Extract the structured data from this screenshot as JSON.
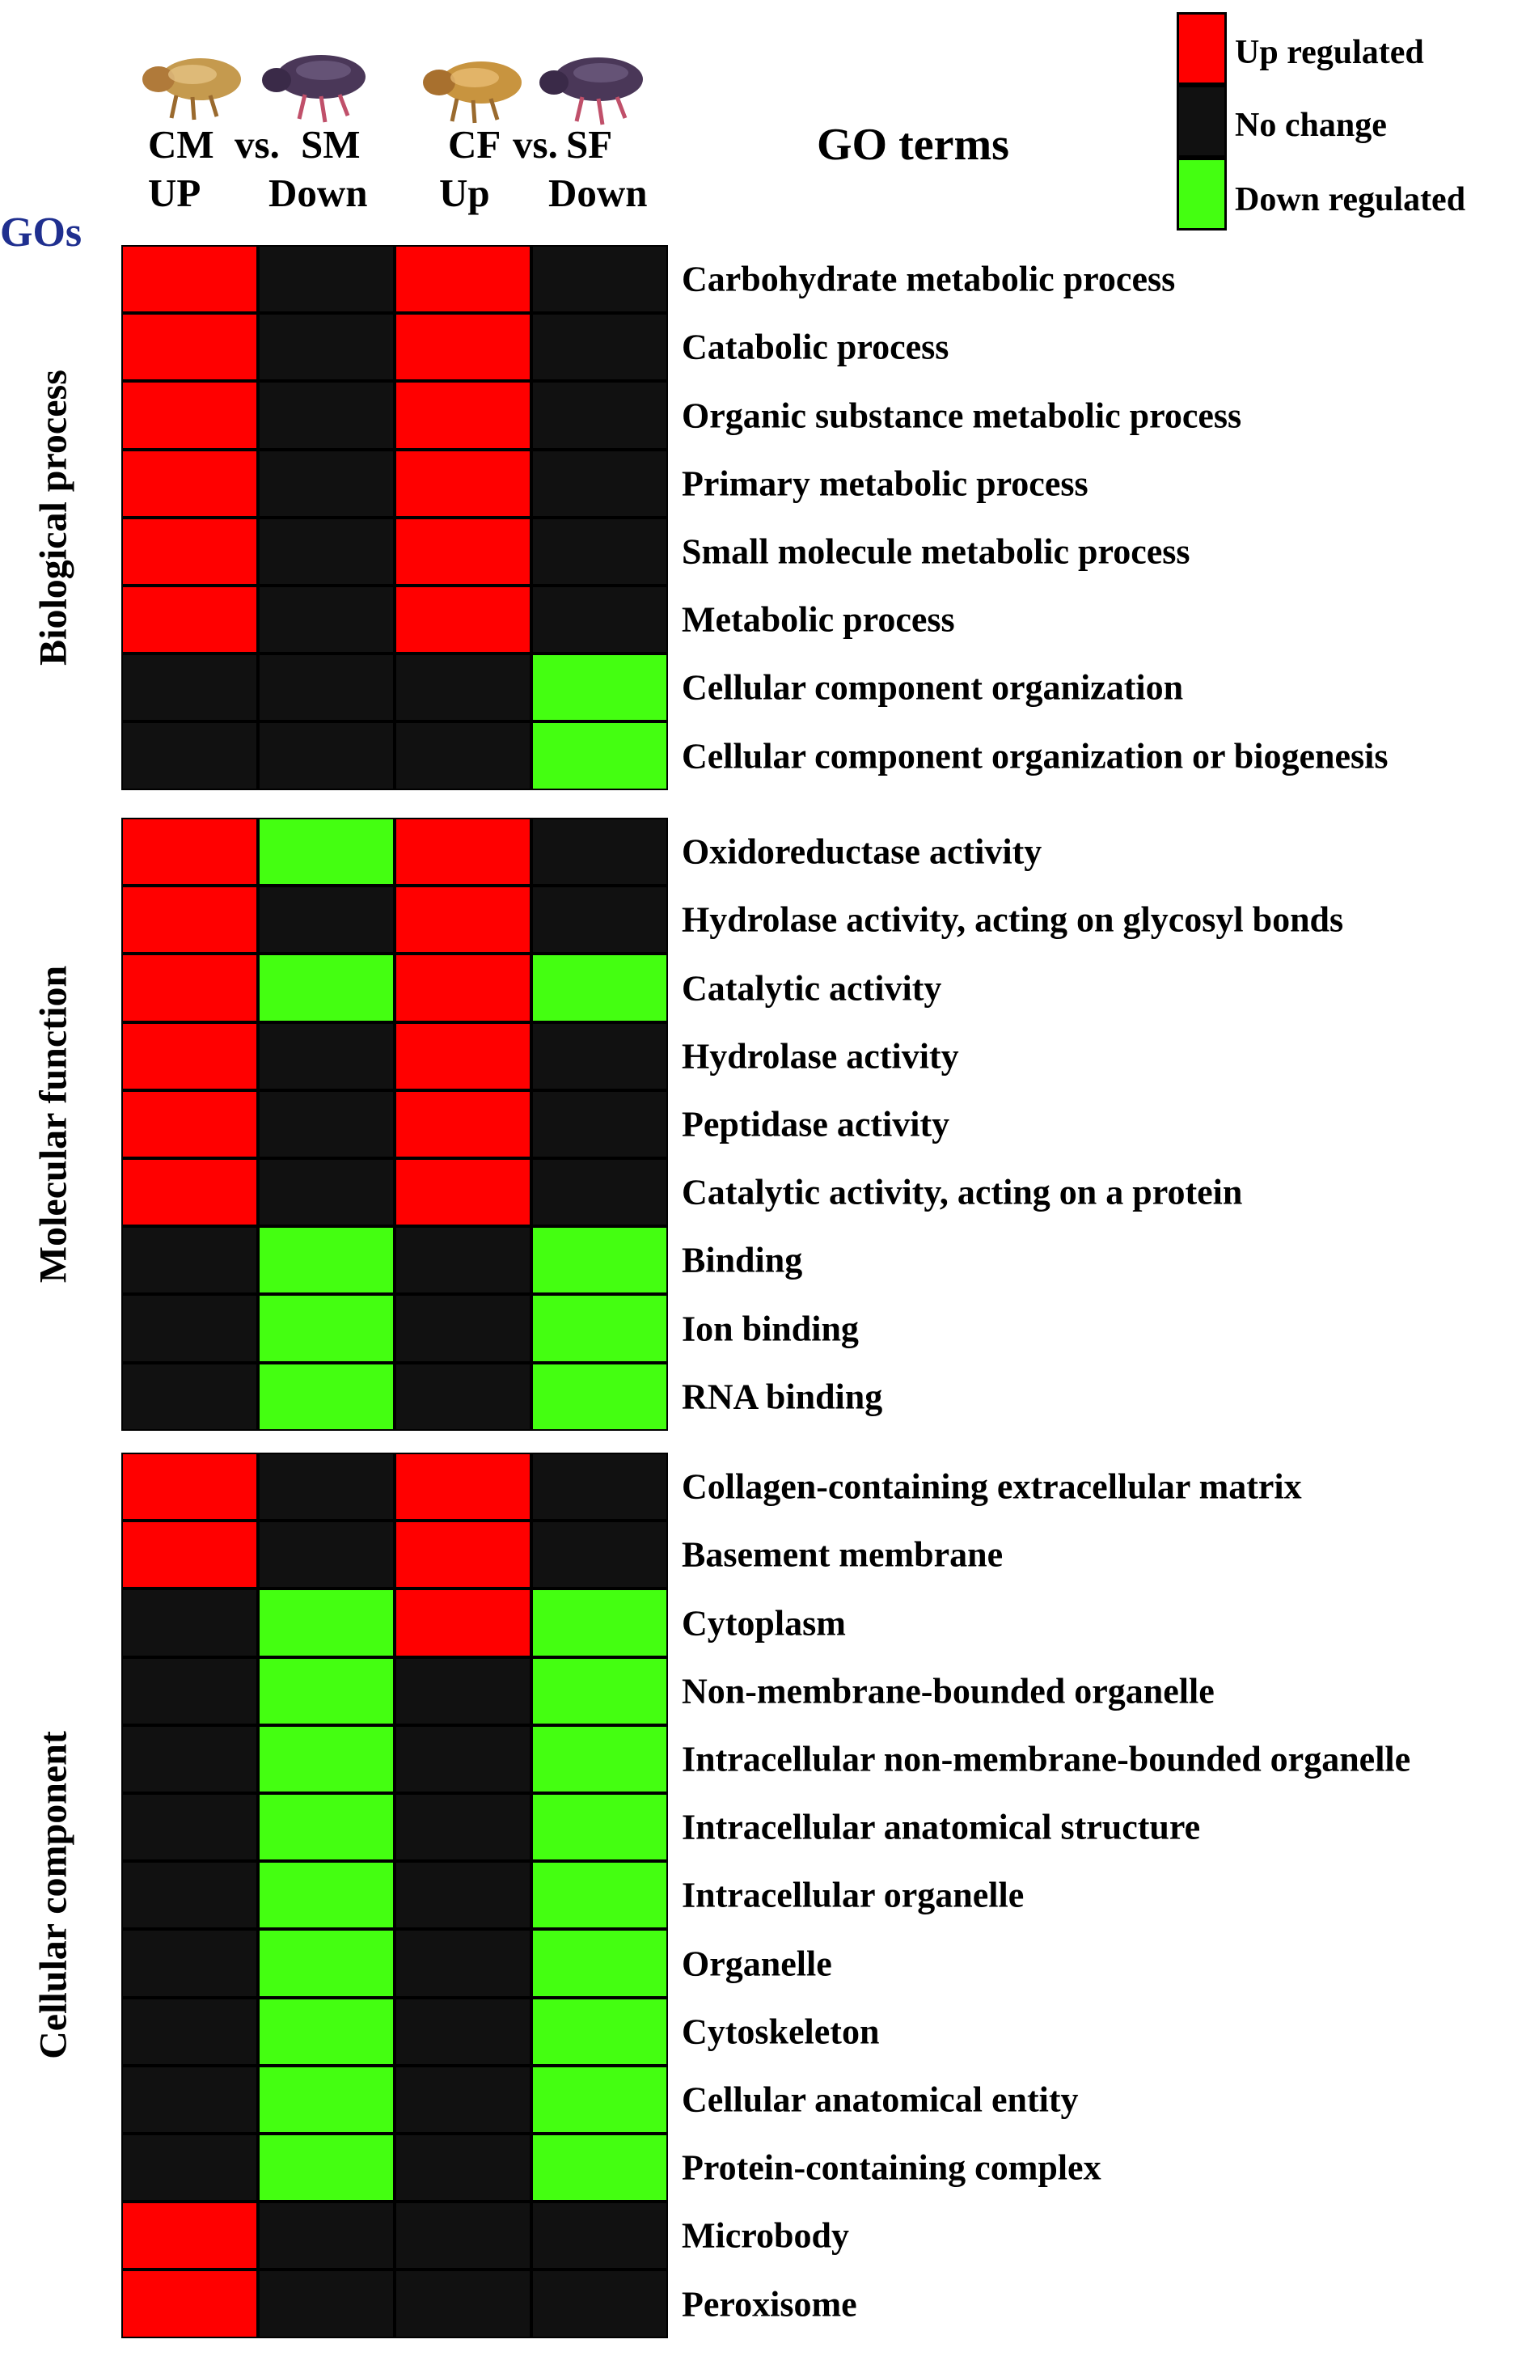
{
  "header": {
    "gos_label": "GOs",
    "go_terms_title": "GO terms",
    "comparisons": [
      {
        "left_label": "CM",
        "vs_label": "vs.",
        "right_label": "SM",
        "left_dir": "UP",
        "right_dir": "Down"
      },
      {
        "left_label": "CF",
        "vs_label": "vs.",
        "right_label": "SF",
        "left_dir": "Up",
        "right_dir": "Down"
      }
    ]
  },
  "legend": [
    {
      "label": "Up regulated",
      "color": "#ff0000"
    },
    {
      "label": "No change",
      "color": "#111111"
    },
    {
      "label": "Down regulated",
      "color": "#44ff11"
    }
  ],
  "chart_data": {
    "type": "heatmap",
    "columns": [
      "CM UP",
      "SM Down",
      "CF Up",
      "SF Down"
    ],
    "value_legend": {
      "up": "Up regulated",
      "none": "No change",
      "down": "Down regulated"
    },
    "colors": {
      "up": "#ff0000",
      "none": "#111111",
      "down": "#44ff11"
    },
    "groups": [
      {
        "name": "Biological process",
        "rows": [
          {
            "term": "Carbohydrate metabolic process",
            "values": [
              "up",
              "none",
              "up",
              "none"
            ]
          },
          {
            "term": "Catabolic process",
            "values": [
              "up",
              "none",
              "up",
              "none"
            ]
          },
          {
            "term": "Organic substance metabolic process",
            "values": [
              "up",
              "none",
              "up",
              "none"
            ]
          },
          {
            "term": "Primary metabolic process",
            "values": [
              "up",
              "none",
              "up",
              "none"
            ]
          },
          {
            "term": "Small molecule metabolic process",
            "values": [
              "up",
              "none",
              "up",
              "none"
            ]
          },
          {
            "term": "Metabolic process",
            "values": [
              "up",
              "none",
              "up",
              "none"
            ]
          },
          {
            "term": "Cellular component organization",
            "values": [
              "none",
              "none",
              "none",
              "down"
            ]
          },
          {
            "term": "Cellular component organization or biogenesis",
            "values": [
              "none",
              "none",
              "none",
              "down"
            ]
          }
        ]
      },
      {
        "name": "Molecular function",
        "rows": [
          {
            "term": "Oxidoreductase activity",
            "values": [
              "up",
              "down",
              "up",
              "none"
            ]
          },
          {
            "term": "Hydrolase activity, acting on glycosyl bonds",
            "values": [
              "up",
              "none",
              "up",
              "none"
            ]
          },
          {
            "term": "Catalytic activity",
            "values": [
              "up",
              "down",
              "up",
              "down"
            ]
          },
          {
            "term": "Hydrolase activity",
            "values": [
              "up",
              "none",
              "up",
              "none"
            ]
          },
          {
            "term": "Peptidase activity",
            "values": [
              "up",
              "none",
              "up",
              "none"
            ]
          },
          {
            "term": "Catalytic activity, acting on a protein",
            "values": [
              "up",
              "none",
              "up",
              "none"
            ]
          },
          {
            "term": "Binding",
            "values": [
              "none",
              "down",
              "none",
              "down"
            ]
          },
          {
            "term": "Ion binding",
            "values": [
              "none",
              "down",
              "none",
              "down"
            ]
          },
          {
            "term": "RNA binding",
            "values": [
              "none",
              "down",
              "none",
              "down"
            ]
          }
        ]
      },
      {
        "name": "Cellular component",
        "rows": [
          {
            "term": "Collagen-containing extracellular matrix",
            "values": [
              "up",
              "none",
              "up",
              "none"
            ]
          },
          {
            "term": "Basement membrane",
            "values": [
              "up",
              "none",
              "up",
              "none"
            ]
          },
          {
            "term": "Cytoplasm",
            "values": [
              "none",
              "down",
              "up",
              "down"
            ]
          },
          {
            "term": "Non-membrane-bounded organelle",
            "values": [
              "none",
              "down",
              "none",
              "down"
            ]
          },
          {
            "term": "Intracellular non-membrane-bounded organelle",
            "values": [
              "none",
              "down",
              "none",
              "down"
            ]
          },
          {
            "term": "Intracellular anatomical structure",
            "values": [
              "none",
              "down",
              "none",
              "down"
            ]
          },
          {
            "term": "Intracellular organelle",
            "values": [
              "none",
              "down",
              "none",
              "down"
            ]
          },
          {
            "term": "Organelle",
            "values": [
              "none",
              "down",
              "none",
              "down"
            ]
          },
          {
            "term": "Cytoskeleton",
            "values": [
              "none",
              "down",
              "none",
              "down"
            ]
          },
          {
            "term": "Cellular anatomical entity",
            "values": [
              "none",
              "down",
              "none",
              "down"
            ]
          },
          {
            "term": "Protein-containing complex",
            "values": [
              "none",
              "down",
              "none",
              "down"
            ]
          },
          {
            "term": "Microbody",
            "values": [
              "up",
              "none",
              "none",
              "none"
            ]
          },
          {
            "term": "Peroxisome",
            "values": [
              "up",
              "none",
              "none",
              "none"
            ]
          }
        ]
      }
    ]
  }
}
